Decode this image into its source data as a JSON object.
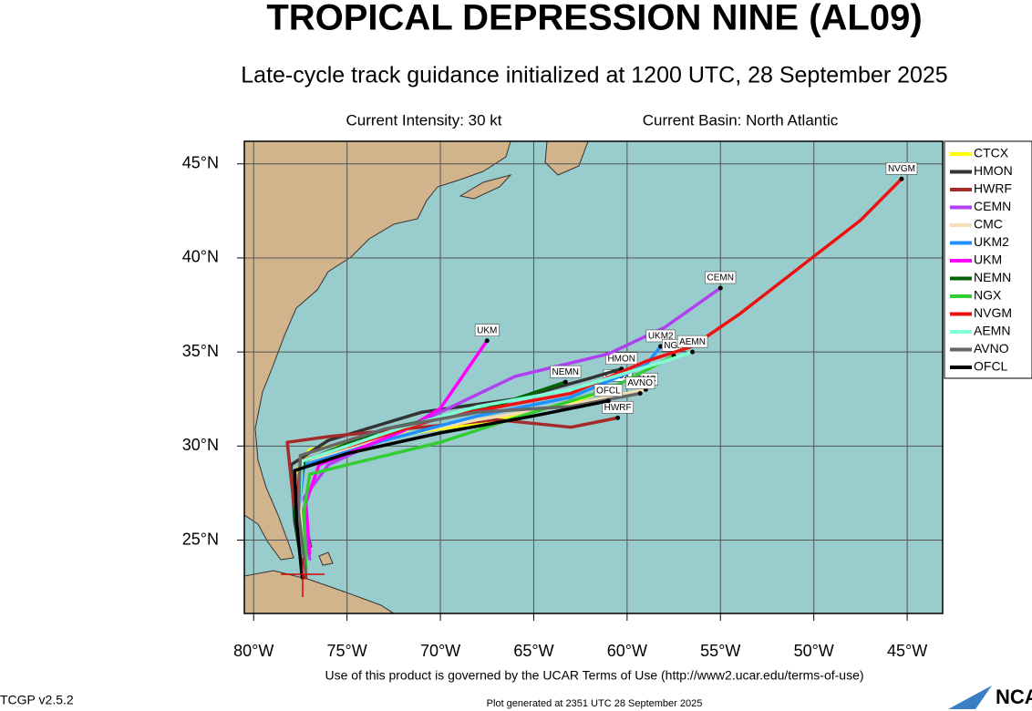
{
  "title": "TROPICAL DEPRESSION NINE (AL09)",
  "subtitle": "Late-cycle track guidance initialized at 1200 UTC, 28 September 2025",
  "current_intensity": "Current Intensity: 30 kt",
  "current_basin": "Current Basin: North Atlantic",
  "map": {
    "xlim": [
      -80.5,
      -43.1
    ],
    "ylim": [
      21.1,
      46.2
    ],
    "xticks": [
      {
        "value": -80,
        "label": "80°W"
      },
      {
        "value": -75,
        "label": "75°W"
      },
      {
        "value": -70,
        "label": "70°W"
      },
      {
        "value": -65,
        "label": "65°W"
      },
      {
        "value": -60,
        "label": "60°W"
      },
      {
        "value": -55,
        "label": "55°W"
      },
      {
        "value": -50,
        "label": "50°W"
      },
      {
        "value": -45,
        "label": "45°W"
      }
    ],
    "yticks": [
      {
        "value": 25,
        "label": "25°N"
      },
      {
        "value": 30,
        "label": "30°N"
      },
      {
        "value": 35,
        "label": "35°N"
      },
      {
        "value": 40,
        "label": "40°N"
      },
      {
        "value": 45,
        "label": "45°N"
      }
    ],
    "tracks": [
      {
        "name": "CTCX",
        "color": "#ffff00",
        "lon": [
          -77.2,
          -77.6,
          -77.8,
          -77,
          -73,
          -68,
          -63,
          -60.5
        ],
        "lat": [
          23.5,
          26,
          28.5,
          29.8,
          30.5,
          31.2,
          32.3,
          33.2
        ]
      },
      {
        "name": "HMON",
        "color": "#333333",
        "lon": [
          -77.3,
          -77.8,
          -78,
          -76,
          -71,
          -66,
          -62,
          -60.3
        ],
        "lat": [
          23,
          26,
          29,
          30.3,
          31.8,
          32.5,
          33.6,
          34.1
        ]
      },
      {
        "name": "HWRF",
        "color": "#a52a2a",
        "lon": [
          -77.2,
          -77.8,
          -78.2,
          -76,
          -71,
          -67,
          -63,
          -60.5
        ],
        "lat": [
          23,
          26.5,
          30.2,
          30.5,
          31,
          31.4,
          31,
          31.5
        ]
      },
      {
        "name": "CEMN",
        "color": "#b040f0",
        "lon": [
          -77,
          -77.5,
          -76,
          -70,
          -66,
          -61,
          -58,
          -55
        ],
        "lat": [
          24,
          27,
          29,
          31.8,
          33.7,
          34.9,
          36.3,
          38.4
        ]
      },
      {
        "name": "CMC",
        "color": "#f5deb3",
        "lon": [
          -77.3,
          -77.5,
          -77.4,
          -74,
          -68,
          -63,
          -59
        ],
        "lat": [
          23.5,
          26.5,
          29,
          30.2,
          31.4,
          32.2,
          33
        ]
      },
      {
        "name": "UKM2",
        "color": "#1e90ff",
        "lon": [
          -77.3,
          -77.6,
          -77.3,
          -73,
          -68,
          -63,
          -59,
          -58.2
        ],
        "lat": [
          23.2,
          26.5,
          29,
          30.3,
          31.6,
          32.6,
          34.3,
          35.3
        ]
      },
      {
        "name": "UKM",
        "color": "#ff00ff",
        "lon": [
          -77,
          -77.2,
          -76.5,
          -72,
          -70,
          -67.5
        ],
        "lat": [
          24.3,
          27,
          29,
          30.8,
          32,
          35.6
        ]
      },
      {
        "name": "NEMN",
        "color": "#006400",
        "lon": [
          -77.4,
          -77.8,
          -77.3,
          -73,
          -67.5,
          -63.3
        ],
        "lat": [
          23.3,
          26.5,
          29.2,
          30.9,
          32,
          33.4
        ]
      },
      {
        "name": "NGX",
        "color": "#32cd32",
        "lon": [
          -77.2,
          -77.3,
          -77,
          -75,
          -70,
          -66,
          -61,
          -57.5
        ],
        "lat": [
          23.5,
          26.5,
          28.5,
          29,
          30.2,
          31.5,
          33,
          34.8
        ]
      },
      {
        "name": "NVGM",
        "color": "#ee1111",
        "lon": [
          -77.4,
          -77.7,
          -77.5,
          -70,
          -63,
          -59,
          -56.5,
          -54,
          -47.5,
          -45.3
        ],
        "lat": [
          23,
          26.5,
          29.2,
          31.5,
          32.8,
          34.5,
          35.3,
          37,
          42,
          44.2
        ]
      },
      {
        "name": "AEMN",
        "color": "#7fffd4",
        "lon": [
          -77.3,
          -77.6,
          -77.4,
          -72,
          -68,
          -63,
          -58,
          -56.5
        ],
        "lat": [
          23.3,
          26.5,
          29.2,
          31,
          32.1,
          33,
          34.5,
          35
        ]
      },
      {
        "name": "AVNO",
        "color": "#666666",
        "lon": [
          -77.2,
          -77.6,
          -77.5,
          -73,
          -68,
          -63,
          -59.3
        ],
        "lat": [
          23.2,
          26.5,
          29.5,
          30.9,
          31.8,
          32.1,
          32.8
        ]
      },
      {
        "name": "OFCL",
        "color": "#000000",
        "lon": [
          -77.4,
          -77.7,
          -77.8,
          -75,
          -70,
          -65,
          -61
        ],
        "lat": [
          23,
          26,
          28.7,
          29.6,
          30.7,
          31.6,
          32.4
        ]
      }
    ]
  },
  "footer": {
    "terms": "Use of this product is governed by the UCAR Terms of Use (http://www2.ucar.edu/terms-of-use)",
    "version": "TCGP v2.5.2",
    "generated": "Plot generated at 2351 UTC   28 September 2025",
    "logo": "NCAR"
  }
}
